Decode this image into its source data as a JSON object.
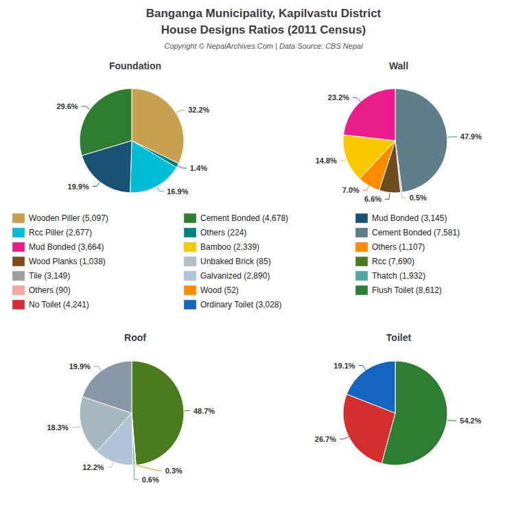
{
  "title": "Banganga Municipality, Kapilvastu District",
  "subtitle": "House Designs Ratios (2011 Census)",
  "annotations": [
    "Copyright © NepalArchives.Com | Data Source: CBS Nepal"
  ],
  "legend_entries": [
    {
      "name": "Wooden Piller (5,097)",
      "color": "#c8a050"
    },
    {
      "name": "Rcc Piller (2,677)",
      "color": "#00bcd4"
    },
    {
      "name": "Mud Bonded (3,664)",
      "color": "#e91e8c"
    },
    {
      "name": "Wood Planks (1,038)",
      "color": "#7b4c1e"
    },
    {
      "name": "Tile (3,149)",
      "color": "#9e9e9e"
    },
    {
      "name": "Others (90)",
      "color": "#f4a7a0"
    },
    {
      "name": "No Toilet (4,241)",
      "color": "#d32f2f"
    },
    {
      "name": "Cement Bonded (4,678)",
      "color": "#2e7d32"
    },
    {
      "name": "Others (224)",
      "color": "#008080"
    },
    {
      "name": "Bamboo (2,339)",
      "color": "#f9c800"
    },
    {
      "name": "Unbaked Brick (85)",
      "color": "#b0bec5"
    },
    {
      "name": "Galvanized (2,890)",
      "color": "#b0c4d8"
    },
    {
      "name": "Wood (52)",
      "color": "#ff8c00"
    },
    {
      "name": "Ordinary Toilet (3,028)",
      "color": "#1565c0"
    },
    {
      "name": "Mud Bonded (3,145)",
      "color": "#1a5276"
    },
    {
      "name": "Cement Bonded (7,581)",
      "color": "#607d8b"
    },
    {
      "name": "Others (1,107)",
      "color": "#ff8c00"
    },
    {
      "name": "Rcc (7,690)",
      "color": "#4a7c1f"
    },
    {
      "name": "Thatch (1,932)",
      "color": "#4fa8a8"
    },
    {
      "name": "Flush Toilet (8,612)",
      "color": "#2e7d32"
    }
  ],
  "chart_data": [
    {
      "type": "pie",
      "title": "Foundation",
      "values": [
        32.2,
        1.4,
        16.9,
        19.9,
        29.6
      ],
      "value_labels": [
        "32.2%",
        "1.4%",
        "16.9%",
        "19.9%",
        "29.6%"
      ],
      "colors": [
        "#c8a050",
        "#008080",
        "#00bcd4",
        "#1a5276",
        "#2e7d32"
      ],
      "data_labels": true
    },
    {
      "type": "pie",
      "title": "Wall",
      "values": [
        47.9,
        0.5,
        6.6,
        7.0,
        14.8,
        23.2
      ],
      "value_labels": [
        "47.9%",
        "0.5%",
        "6.6%",
        "7.0%",
        "14.8%",
        "23.2%"
      ],
      "colors": [
        "#607d8b",
        "#b0bec5",
        "#6d4c1e",
        "#ff8c00",
        "#f9c800",
        "#e91e8c"
      ],
      "data_labels": true
    },
    {
      "type": "pie",
      "title": "Roof",
      "values": [
        48.7,
        0.3,
        0.6,
        12.2,
        18.3,
        19.9
      ],
      "value_labels": [
        "48.7%",
        "0.3%",
        "0.6%",
        "12.2%",
        "18.3%",
        "19.9%"
      ],
      "colors": [
        "#4a7c1f",
        "#ff8c00",
        "#4fa8a8",
        "#b0c4d8",
        "#a8b8c0",
        "#8898a8"
      ],
      "data_labels": true
    },
    {
      "type": "pie",
      "title": "Toilet",
      "values": [
        54.2,
        26.7,
        19.1
      ],
      "value_labels": [
        "54.2%",
        "26.7%",
        "19.1%"
      ],
      "colors": [
        "#2e7d32",
        "#d32f2f",
        "#1565c0"
      ],
      "data_labels": true
    }
  ]
}
